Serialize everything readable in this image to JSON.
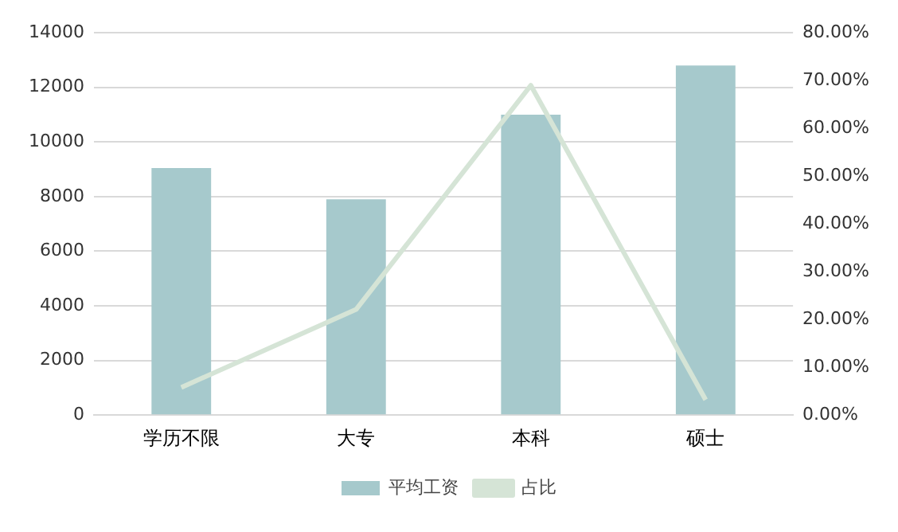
{
  "chart_data": {
    "type": "bar",
    "categories": [
      "学历不限",
      "大专",
      "本科",
      "硕士"
    ],
    "series": [
      {
        "name": "平均工资",
        "color": "#a6c9cc",
        "values": [
          9050,
          7900,
          11000,
          12800
        ]
      },
      {
        "name": "占比",
        "type": "line",
        "axis": "y2",
        "color": "#d5e4d6",
        "values": [
          5.8,
          22.1,
          69.0,
          3.2
        ]
      }
    ],
    "ylim": [
      0,
      14000
    ],
    "yticks": [
      0,
      2000,
      4000,
      6000,
      8000,
      10000,
      12000,
      14000
    ],
    "y2lim": [
      0,
      80
    ],
    "y2ticks": [
      {
        "value": 0,
        "label": "0.00%"
      },
      {
        "value": 10,
        "label": "10.00%"
      },
      {
        "value": 20,
        "label": "20.00%"
      },
      {
        "value": 30,
        "label": "30.00%"
      },
      {
        "value": 40,
        "label": "40.00%"
      },
      {
        "value": 50,
        "label": "50.00%"
      },
      {
        "value": 60,
        "label": "60.00%"
      },
      {
        "value": 70,
        "label": "70.00%"
      },
      {
        "value": 80,
        "label": "80.00%"
      }
    ],
    "grid": "y",
    "legend": "bottom",
    "marker": "none"
  }
}
